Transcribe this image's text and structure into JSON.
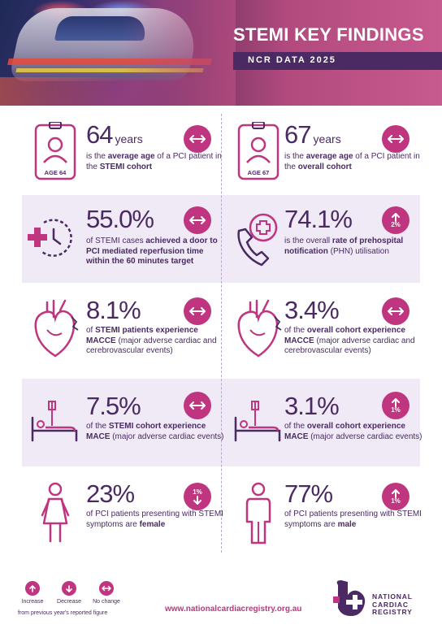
{
  "header": {
    "title": "STEMI KEY FINDINGS",
    "subtitle": "NCR DATA 2025"
  },
  "colors": {
    "accent": "#c0357f",
    "primary": "#4b2a63",
    "band": "#efeaf5"
  },
  "findings": [
    {
      "icon": "id-badge-icon",
      "icon_label": "AGE 64",
      "value": "64",
      "unit": "years",
      "desc_pre": "is the ",
      "desc_bold": "average age",
      "desc_mid": " of a PCI patient in the ",
      "desc_bold2": "STEMI cohort",
      "desc_post": "",
      "trend": "no-change",
      "trend_pct": ""
    },
    {
      "icon": "id-badge-icon",
      "icon_label": "AGE 67",
      "value": "67",
      "unit": "years",
      "desc_pre": "is the ",
      "desc_bold": "average age",
      "desc_mid": " of a PCI patient in the ",
      "desc_bold2": "overall cohort",
      "desc_post": "",
      "trend": "no-change",
      "trend_pct": ""
    },
    {
      "icon": "clock-cross-icon",
      "value": "55.0%",
      "unit": "",
      "desc_pre": "of STEMI cases ",
      "desc_bold": "achieved a door to PCI mediated reperfusion time within the 60 minutes target",
      "desc_mid": "",
      "desc_bold2": "",
      "desc_post": "",
      "trend": "no-change",
      "trend_pct": ""
    },
    {
      "icon": "phone-cross-icon",
      "value": "74.1%",
      "unit": "",
      "desc_pre": "is the overall ",
      "desc_bold": "rate of prehospital notification",
      "desc_mid": "",
      "desc_bold2": "",
      "desc_post": " (PHN) utilisation",
      "trend": "increase",
      "trend_pct": "2%"
    },
    {
      "icon": "heart-icon",
      "value": "8.1%",
      "unit": "",
      "desc_pre": "of ",
      "desc_bold": "STEMI patients experience MACCE",
      "desc_mid": "",
      "desc_bold2": "",
      "desc_post": " (major adverse cardiac and cerebrovascular events)",
      "trend": "no-change",
      "trend_pct": ""
    },
    {
      "icon": "heart-icon",
      "value": "3.4%",
      "unit": "",
      "desc_pre": "of the ",
      "desc_bold": "overall cohort experience MACCE",
      "desc_mid": "",
      "desc_bold2": "",
      "desc_post": " (major adverse cardiac and cerebrovascular events)",
      "trend": "no-change",
      "trend_pct": ""
    },
    {
      "icon": "hospital-bed-icon",
      "value": "7.5%",
      "unit": "",
      "desc_pre": "of the ",
      "desc_bold": "STEMI cohort experience MACE",
      "desc_mid": "",
      "desc_bold2": "",
      "desc_post": " (major adverse cardiac events)",
      "trend": "no-change",
      "trend_pct": ""
    },
    {
      "icon": "hospital-bed-icon",
      "value": "3.1%",
      "unit": "",
      "desc_pre": "of the ",
      "desc_bold": "overall cohort experience MACE",
      "desc_mid": "",
      "desc_bold2": "",
      "desc_post": " (major adverse cardiac events)",
      "trend": "increase",
      "trend_pct": "1%"
    },
    {
      "icon": "female-icon",
      "value": "23%",
      "unit": "",
      "desc_pre": "of PCI patients presenting with STEMI symptoms are ",
      "desc_bold": "female",
      "desc_mid": "",
      "desc_bold2": "",
      "desc_post": "",
      "trend": "decrease",
      "trend_pct": "1%"
    },
    {
      "icon": "male-icon",
      "value": "77%",
      "unit": "",
      "desc_pre": "of PCI patients presenting with STEMI symptoms are ",
      "desc_bold": "male",
      "desc_mid": "",
      "desc_bold2": "",
      "desc_post": "",
      "trend": "increase",
      "trend_pct": "1%"
    }
  ],
  "legend": {
    "increase": "Increase",
    "decrease": "Decrease",
    "no_change": "No change",
    "note": "from previous year's reported figure"
  },
  "footer": {
    "url": "www.nationalcardiacregistry.org.au",
    "logo_line1": "NATIONAL",
    "logo_line2": "CARDIAC",
    "logo_line3": "REGISTRY"
  }
}
